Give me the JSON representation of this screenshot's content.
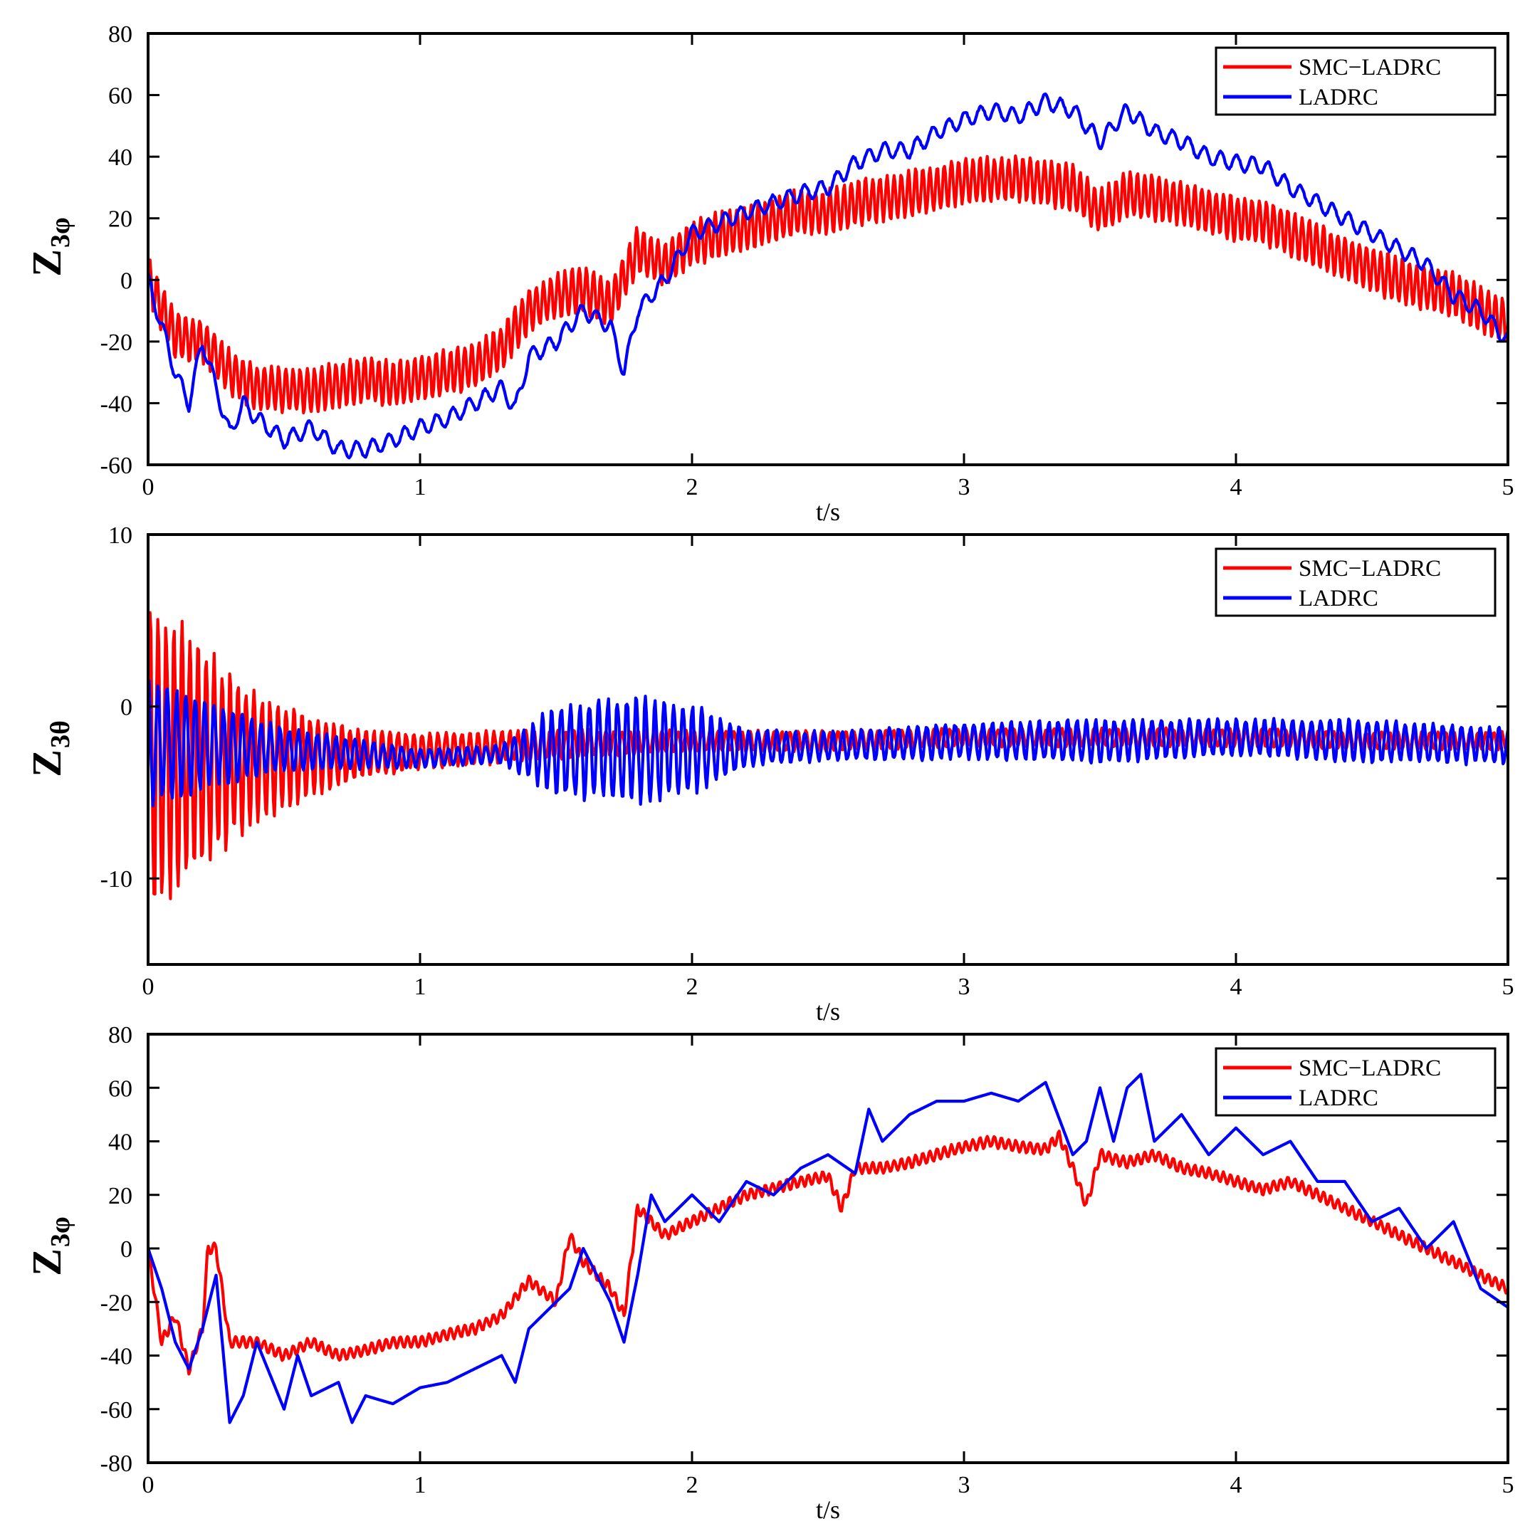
{
  "chart_data": [
    {
      "type": "line",
      "title": "",
      "ylabel": "Z",
      "ylabel_subscript": "3φ",
      "xlabel": "t/s",
      "xlim": [
        0,
        5
      ],
      "ylim": [
        -60,
        80
      ],
      "xticks": [
        "0",
        "1",
        "2",
        "3",
        "4",
        "5"
      ],
      "xtick_values": [
        0,
        1,
        2,
        3,
        4,
        5
      ],
      "yticks": [
        "80",
        "60",
        "40",
        "20",
        "0",
        "-20",
        "-40",
        "-60"
      ],
      "ytick_values": [
        80,
        60,
        40,
        20,
        0,
        -20,
        -40,
        -60
      ],
      "legend_position": "top-right",
      "series": [
        {
          "name": "SMC−LADRC",
          "color": "#ff0000",
          "osc_amp": 7,
          "x": [
            0,
            0.1,
            0.2,
            0.3,
            0.4,
            0.6,
            0.8,
            0.9,
            1.0,
            1.2,
            1.3,
            1.4,
            1.5,
            1.6,
            1.7,
            1.8,
            1.9,
            2.0,
            2.2,
            2.4,
            2.5,
            2.6,
            2.8,
            3.0,
            3.2,
            3.4,
            3.5,
            3.6,
            3.8,
            4.0,
            4.1,
            4.2,
            4.4,
            4.6,
            4.8,
            5.0
          ],
          "y": [
            0,
            -18,
            -20,
            -30,
            -35,
            -36,
            -32,
            -34,
            -32,
            -28,
            -22,
            -10,
            -5,
            -3,
            -8,
            10,
            5,
            12,
            17,
            22,
            22,
            25,
            28,
            32,
            33,
            30,
            22,
            28,
            25,
            20,
            19,
            15,
            7,
            0,
            -5,
            -14
          ]
        },
        {
          "name": "LADRC",
          "color": "#0000ff",
          "osc_amp": 2.5,
          "x": [
            0,
            0.05,
            0.1,
            0.15,
            0.2,
            0.25,
            0.3,
            0.35,
            0.4,
            0.5,
            0.6,
            0.7,
            0.8,
            0.9,
            1.0,
            1.1,
            1.2,
            1.3,
            1.35,
            1.4,
            1.5,
            1.6,
            1.7,
            1.75,
            1.8,
            1.9,
            2.0,
            2.2,
            2.4,
            2.5,
            2.6,
            2.7,
            2.8,
            2.9,
            3.0,
            3.1,
            3.2,
            3.3,
            3.4,
            3.5,
            3.6,
            3.7,
            3.8,
            3.9,
            4.0,
            4.1,
            4.2,
            4.3,
            4.4,
            4.5,
            4.6,
            4.7,
            4.8,
            4.9,
            5.0
          ],
          "y": [
            0,
            -15,
            -30,
            -40,
            -20,
            -35,
            -50,
            -40,
            -45,
            -52,
            -48,
            -55,
            -55,
            -52,
            -48,
            -45,
            -40,
            -35,
            -42,
            -25,
            -20,
            -10,
            -15,
            -30,
            -10,
            0,
            15,
            22,
            28,
            30,
            38,
            42,
            42,
            48,
            52,
            55,
            53,
            58,
            55,
            45,
            55,
            48,
            45,
            40,
            38,
            37,
            30,
            25,
            20,
            15,
            10,
            5,
            -5,
            -10,
            -20
          ]
        }
      ]
    },
    {
      "type": "line",
      "title": "",
      "ylabel": "Z",
      "ylabel_subscript": "3θ",
      "xlabel": "t/s",
      "xlim": [
        0,
        5
      ],
      "ylim": [
        -15,
        10
      ],
      "xticks": [
        "0",
        "1",
        "2",
        "3",
        "4",
        "5"
      ],
      "xtick_values": [
        0,
        1,
        2,
        3,
        4,
        5
      ],
      "yticks": [
        "10",
        "0",
        "-10"
      ],
      "ytick_values": [
        10,
        0,
        -10
      ],
      "legend_position": "top-right",
      "series": [
        {
          "name": "SMC−LADRC",
          "color": "#ff0000",
          "osc_amp": 0,
          "envelope": [
            [
              0,
              9
            ],
            [
              0.2,
              6
            ],
            [
              0.4,
              3.5
            ],
            [
              0.6,
              2.2
            ],
            [
              0.8,
              1.3
            ],
            [
              1.0,
              1
            ],
            [
              1.5,
              0.8
            ],
            [
              2.0,
              0.6
            ],
            [
              3.0,
              0.5
            ],
            [
              5.0,
              0.5
            ]
          ],
          "x": [
            0,
            0.5,
            1.0,
            1.5,
            2.0,
            2.5,
            3.0,
            3.5,
            4.0,
            4.5,
            5.0
          ],
          "y": [
            -3,
            -3,
            -2.6,
            -2.2,
            -2,
            -2,
            -1.8,
            -1.8,
            -1.8,
            -2,
            -2
          ]
        },
        {
          "name": "LADRC",
          "color": "#0000ff",
          "osc_amp": 0,
          "envelope": [
            [
              0,
              3.5
            ],
            [
              0.2,
              2.5
            ],
            [
              0.5,
              1.2
            ],
            [
              1.0,
              0.5
            ],
            [
              1.3,
              0.5
            ],
            [
              1.5,
              2.5
            ],
            [
              1.8,
              3
            ],
            [
              2.0,
              2.5
            ],
            [
              2.2,
              1
            ],
            [
              2.5,
              0.8
            ],
            [
              3.5,
              1.2
            ],
            [
              4.0,
              1
            ],
            [
              4.5,
              1.2
            ],
            [
              5.0,
              1
            ]
          ],
          "x": [
            0,
            0.5,
            1.0,
            1.5,
            2.0,
            2.5,
            3.0,
            3.5,
            4.0,
            4.5,
            5.0
          ],
          "y": [
            -2,
            -2.5,
            -3,
            -2.6,
            -2.5,
            -2.3,
            -2,
            -2,
            -1.8,
            -2,
            -2.3
          ]
        }
      ]
    },
    {
      "type": "line",
      "title": "",
      "ylabel": "Z",
      "ylabel_subscript": "3φ",
      "xlabel": "t/s",
      "xlim": [
        0,
        5
      ],
      "ylim": [
        -80,
        80
      ],
      "xticks": [
        "0",
        "1",
        "2",
        "3",
        "4",
        "5"
      ],
      "xtick_values": [
        0,
        1,
        2,
        3,
        4,
        5
      ],
      "yticks": [
        "80",
        "60",
        "40",
        "20",
        "0",
        "-20",
        "-40",
        "-60",
        "-80"
      ],
      "ytick_values": [
        80,
        60,
        40,
        20,
        0,
        -20,
        -40,
        -60,
        -80
      ],
      "legend_position": "top-right",
      "series": [
        {
          "name": "SMC−LADRC",
          "color": "#ff0000",
          "osc_amp": 2,
          "x": [
            0,
            0.05,
            0.1,
            0.15,
            0.2,
            0.22,
            0.25,
            0.3,
            0.4,
            0.5,
            0.6,
            0.7,
            0.8,
            0.9,
            1.0,
            1.1,
            1.2,
            1.3,
            1.4,
            1.5,
            1.55,
            1.6,
            1.7,
            1.75,
            1.8,
            1.85,
            1.9,
            2.0,
            2.1,
            2.2,
            2.4,
            2.5,
            2.55,
            2.6,
            2.7,
            2.8,
            3.0,
            3.1,
            3.2,
            3.3,
            3.35,
            3.4,
            3.45,
            3.5,
            3.6,
            3.7,
            3.8,
            3.9,
            4.0,
            4.1,
            4.2,
            4.3,
            4.4,
            4.5,
            4.6,
            4.7,
            4.8,
            4.9,
            5.0
          ],
          "y": [
            0,
            -35,
            -25,
            -45,
            -30,
            0,
            0,
            -35,
            -35,
            -40,
            -35,
            -40,
            -38,
            -35,
            -35,
            -32,
            -30,
            -25,
            -12,
            -20,
            5,
            -5,
            -15,
            -25,
            15,
            10,
            5,
            10,
            15,
            20,
            25,
            27,
            15,
            30,
            30,
            32,
            38,
            40,
            38,
            37,
            42,
            30,
            16,
            35,
            32,
            35,
            30,
            28,
            25,
            22,
            25,
            20,
            15,
            10,
            5,
            0,
            -5,
            -10,
            -15
          ]
        },
        {
          "name": "LADRC",
          "color": "#0000ff",
          "osc_amp": 0,
          "x": [
            0,
            0.05,
            0.1,
            0.15,
            0.2,
            0.25,
            0.3,
            0.35,
            0.4,
            0.5,
            0.55,
            0.6,
            0.7,
            0.75,
            0.8,
            0.9,
            1.0,
            1.1,
            1.2,
            1.3,
            1.35,
            1.4,
            1.5,
            1.55,
            1.6,
            1.7,
            1.75,
            1.8,
            1.85,
            1.9,
            2.0,
            2.1,
            2.2,
            2.3,
            2.4,
            2.5,
            2.6,
            2.65,
            2.7,
            2.8,
            2.9,
            3.0,
            3.1,
            3.2,
            3.3,
            3.4,
            3.45,
            3.5,
            3.55,
            3.6,
            3.65,
            3.7,
            3.8,
            3.9,
            4.0,
            4.1,
            4.2,
            4.3,
            4.4,
            4.5,
            4.6,
            4.7,
            4.8,
            4.9,
            5.0
          ],
          "y": [
            0,
            -15,
            -35,
            -45,
            -30,
            -10,
            -65,
            -55,
            -35,
            -60,
            -40,
            -55,
            -50,
            -65,
            -55,
            -58,
            -52,
            -50,
            -45,
            -40,
            -50,
            -30,
            -20,
            -15,
            0,
            -20,
            -35,
            -10,
            20,
            10,
            20,
            10,
            25,
            20,
            30,
            35,
            28,
            52,
            40,
            50,
            55,
            55,
            58,
            55,
            62,
            35,
            40,
            60,
            40,
            60,
            65,
            40,
            50,
            35,
            45,
            35,
            40,
            25,
            25,
            10,
            15,
            0,
            10,
            -15,
            -22
          ]
        }
      ]
    }
  ]
}
